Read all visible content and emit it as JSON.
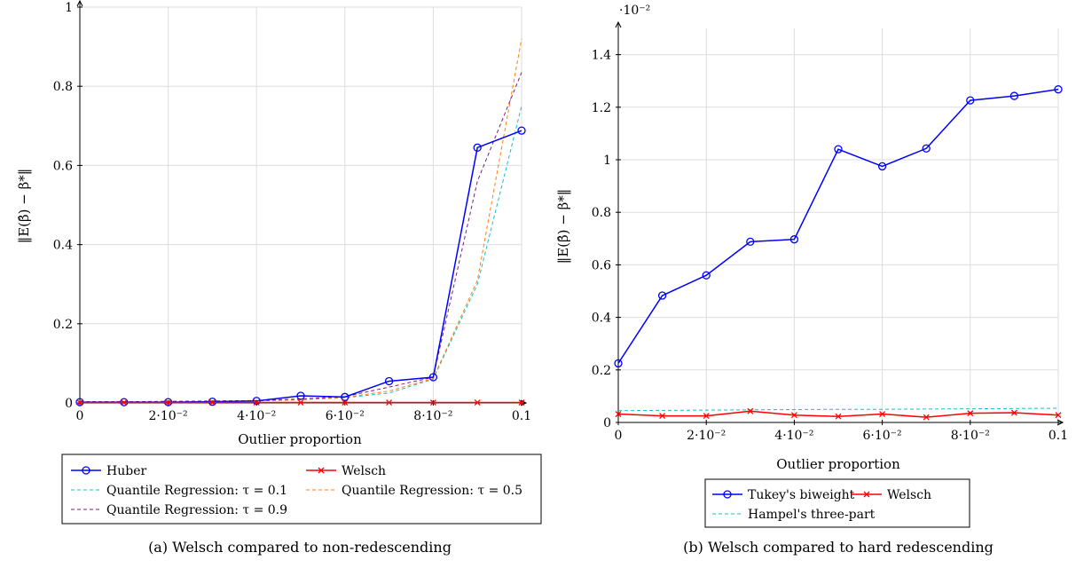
{
  "chart_data": [
    {
      "type": "line",
      "caption": "(a) Welsch compared to non-redescending",
      "xlabel": "Outlier proportion",
      "ylabel": "‖E(β̂) − β*‖",
      "xlim": [
        0,
        0.1
      ],
      "ylim": [
        0,
        1
      ],
      "xticks": [
        0,
        0.02,
        0.04,
        0.06,
        0.08,
        0.1
      ],
      "xtick_labels": [
        "0",
        "2·10⁻²",
        "4·10⁻²",
        "6·10⁻²",
        "8·10⁻²",
        "0.1"
      ],
      "yticks": [
        0,
        0.2,
        0.4,
        0.6,
        0.8,
        1
      ],
      "ytick_labels": [
        "0",
        "0.2",
        "0.4",
        "0.6",
        "0.8",
        "1"
      ],
      "grid": true,
      "legend_position": "below",
      "x": [
        0,
        0.01,
        0.02,
        0.03,
        0.04,
        0.05,
        0.06,
        0.07,
        0.08,
        0.09,
        0.1
      ],
      "series": [
        {
          "name": "Huber",
          "color": "#0000ff",
          "style": "solid",
          "marker": "circle",
          "values": [
            0.002,
            0.002,
            0.002,
            0.003,
            0.005,
            0.018,
            0.015,
            0.055,
            0.065,
            0.645,
            0.688
          ]
        },
        {
          "name": "Welsch",
          "color": "#ff0000",
          "style": "solid",
          "marker": "cross",
          "values": [
            0.001,
            0.001,
            0.001,
            0.001,
            0.001,
            0.001,
            0.001,
            0.001,
            0.001,
            0.001,
            0.001
          ]
        },
        {
          "name": "Quantile Regression: τ = 0.1",
          "color": "#17becf",
          "style": "dashed",
          "marker": "none",
          "values": [
            0.003,
            0.003,
            0.003,
            0.004,
            0.005,
            0.008,
            0.013,
            0.025,
            0.06,
            0.3,
            0.75
          ]
        },
        {
          "name": "Quantile Regression: τ = 0.5",
          "color": "#ff7f0e",
          "style": "dashed",
          "marker": "none",
          "values": [
            0.003,
            0.003,
            0.003,
            0.004,
            0.005,
            0.008,
            0.014,
            0.03,
            0.062,
            0.31,
            0.92
          ]
        },
        {
          "name": "Quantile Regression: τ = 0.9",
          "color": "#7b1f7f",
          "style": "dashed",
          "marker": "none",
          "values": [
            0.003,
            0.003,
            0.004,
            0.005,
            0.006,
            0.01,
            0.016,
            0.04,
            0.065,
            0.56,
            0.835
          ]
        }
      ]
    },
    {
      "type": "line",
      "caption": "(b) Welsch compared to hard redescending",
      "xlabel": "Outlier proportion",
      "ylabel": "‖E(β̂) − β*‖",
      "y_multiplier": "·10⁻²",
      "xlim": [
        0,
        0.1
      ],
      "ylim": [
        0,
        1.5
      ],
      "xticks": [
        0,
        0.02,
        0.04,
        0.06,
        0.08,
        0.1
      ],
      "xtick_labels": [
        "0",
        "2·10⁻²",
        "4·10⁻²",
        "6·10⁻²",
        "8·10⁻²",
        "0.1"
      ],
      "yticks": [
        0,
        0.2,
        0.4,
        0.6,
        0.8,
        1,
        1.2,
        1.4
      ],
      "ytick_labels": [
        "0",
        "0.2",
        "0.4",
        "0.6",
        "0.8",
        "1",
        "1.2",
        "1.4"
      ],
      "grid": true,
      "legend_position": "below",
      "x": [
        0,
        0.01,
        0.02,
        0.03,
        0.04,
        0.05,
        0.06,
        0.07,
        0.08,
        0.09,
        0.1
      ],
      "series": [
        {
          "name": "Tukey's biweight",
          "color": "#0000ff",
          "style": "solid",
          "marker": "circle",
          "values": [
            0.225,
            0.483,
            0.56,
            0.688,
            0.697,
            1.04,
            0.975,
            1.043,
            1.226,
            1.243,
            1.268
          ]
        },
        {
          "name": "Welsch",
          "color": "#ff0000",
          "style": "solid",
          "marker": "cross",
          "values": [
            0.032,
            0.025,
            0.025,
            0.043,
            0.028,
            0.023,
            0.032,
            0.02,
            0.035,
            0.037,
            0.028
          ]
        },
        {
          "name": "Hampel's three-part",
          "color": "#17becf",
          "style": "dashed",
          "marker": "none",
          "values": [
            0.045,
            0.046,
            0.047,
            0.048,
            0.049,
            0.05,
            0.05,
            0.051,
            0.052,
            0.053,
            0.054
          ]
        }
      ]
    }
  ]
}
